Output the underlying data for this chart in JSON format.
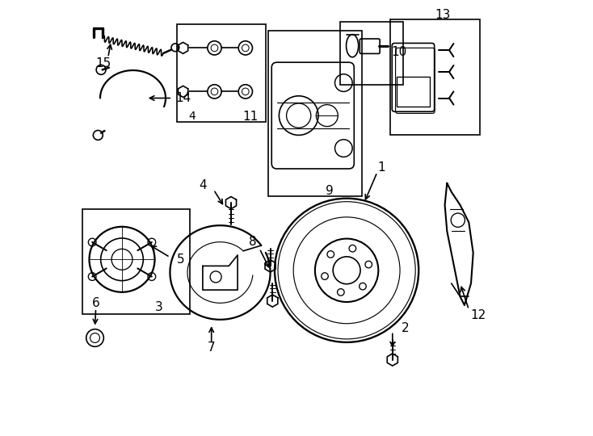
{
  "bg_color": "#ffffff",
  "line_color": "#000000",
  "line_width": 1.2,
  "fig_width": 7.34,
  "fig_height": 5.4,
  "dpi": 100,
  "font_size": 11
}
